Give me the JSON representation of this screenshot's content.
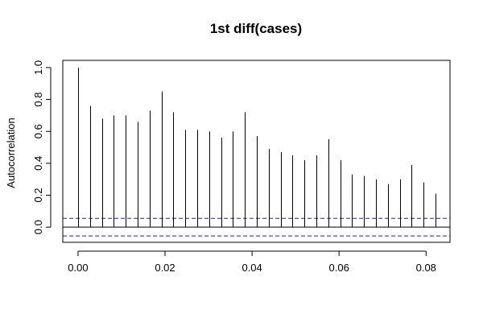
{
  "chart_data": {
    "type": "bar",
    "title": "1st diff(cases)",
    "xlabel": "",
    "ylabel": "Autocorrelation",
    "xlim": [
      -0.0035,
      0.0855
    ],
    "ylim": [
      -0.095,
      1.045
    ],
    "x_ticks": [
      0.0,
      0.02,
      0.04,
      0.06,
      0.08
    ],
    "x_tick_labels": [
      "0.00",
      "0.02",
      "0.04",
      "0.06",
      "0.08"
    ],
    "y_ticks": [
      0.0,
      0.2,
      0.4,
      0.6,
      0.8,
      1.0
    ],
    "y_tick_labels": [
      "0.0",
      "0.2",
      "0.4",
      "0.6",
      "0.8",
      "1.0"
    ],
    "confidence_bound": 0.055,
    "lags": [
      0.0,
      0.00274,
      0.00548,
      0.00822,
      0.01096,
      0.0137,
      0.01644,
      0.01918,
      0.02192,
      0.02466,
      0.0274,
      0.03014,
      0.03288,
      0.03562,
      0.03836,
      0.0411,
      0.04384,
      0.04658,
      0.04932,
      0.05206,
      0.0548,
      0.05753,
      0.06027,
      0.06301,
      0.06575,
      0.06849,
      0.07123,
      0.07397,
      0.07671,
      0.07945,
      0.08219
    ],
    "acf": [
      1.0,
      0.76,
      0.68,
      0.7,
      0.7,
      0.66,
      0.73,
      0.85,
      0.72,
      0.61,
      0.61,
      0.6,
      0.56,
      0.6,
      0.72,
      0.57,
      0.49,
      0.47,
      0.45,
      0.42,
      0.45,
      0.55,
      0.42,
      0.33,
      0.32,
      0.3,
      0.27,
      0.3,
      0.39,
      0.28,
      0.21
    ]
  }
}
